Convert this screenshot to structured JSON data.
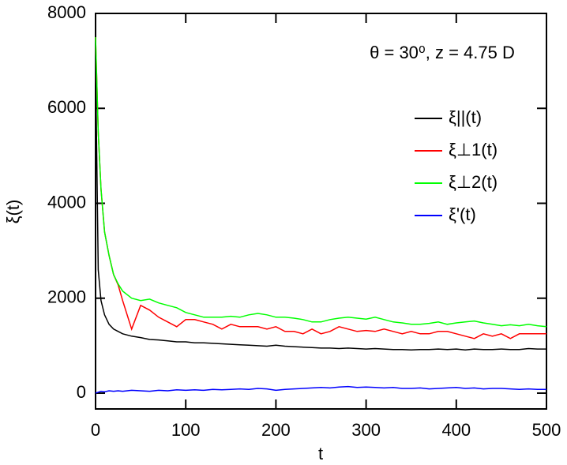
{
  "chart_data": {
    "type": "line",
    "xlabel": "t",
    "ylabel": "ξ(t)",
    "annotation": "θ = 30⁰, z = 4.75 D",
    "xlim": [
      0,
      500
    ],
    "xticks": [
      0,
      100,
      200,
      300,
      400,
      500
    ],
    "ylim": [
      -333,
      8000
    ],
    "yticks": [
      0,
      2000,
      4000,
      6000,
      8000
    ],
    "x": [
      0,
      3,
      6,
      10,
      15,
      20,
      25,
      30,
      40,
      50,
      60,
      70,
      80,
      90,
      100,
      110,
      120,
      130,
      140,
      150,
      160,
      170,
      180,
      190,
      200,
      210,
      220,
      230,
      240,
      250,
      260,
      270,
      280,
      290,
      300,
      310,
      320,
      330,
      340,
      350,
      360,
      370,
      380,
      390,
      400,
      410,
      420,
      430,
      440,
      450,
      460,
      470,
      480,
      490,
      500
    ],
    "series": [
      {
        "name": "ξ||(t)",
        "color": "#000000",
        "values": [
          7000,
          2600,
          1950,
          1650,
          1450,
          1350,
          1300,
          1250,
          1200,
          1170,
          1130,
          1120,
          1100,
          1080,
          1080,
          1060,
          1060,
          1050,
          1040,
          1030,
          1020,
          1010,
          1000,
          990,
          1010,
          990,
          980,
          970,
          960,
          950,
          950,
          940,
          950,
          940,
          930,
          940,
          930,
          920,
          920,
          910,
          920,
          920,
          930,
          920,
          930,
          910,
          930,
          920,
          920,
          930,
          920,
          920,
          940,
          930,
          930
        ]
      },
      {
        "name": "ξ⊥1(t)",
        "color": "#ff0000",
        "values": [
          7500,
          5500,
          4300,
          3400,
          2900,
          2500,
          2280,
          1950,
          1350,
          1850,
          1750,
          1600,
          1500,
          1400,
          1550,
          1550,
          1500,
          1450,
          1350,
          1450,
          1400,
          1400,
          1400,
          1350,
          1400,
          1300,
          1300,
          1250,
          1350,
          1250,
          1300,
          1400,
          1350,
          1300,
          1320,
          1300,
          1350,
          1300,
          1250,
          1300,
          1250,
          1250,
          1300,
          1300,
          1250,
          1200,
          1150,
          1250,
          1200,
          1250,
          1150,
          1250,
          1250,
          1250,
          1250
        ]
      },
      {
        "name": "ξ⊥2(t)",
        "color": "#00ff00",
        "values": [
          7500,
          5500,
          4300,
          3400,
          2900,
          2500,
          2300,
          2150,
          2000,
          1950,
          1980,
          1900,
          1850,
          1800,
          1700,
          1650,
          1600,
          1600,
          1600,
          1620,
          1600,
          1650,
          1680,
          1650,
          1600,
          1600,
          1580,
          1550,
          1500,
          1500,
          1550,
          1580,
          1600,
          1580,
          1560,
          1600,
          1550,
          1500,
          1480,
          1450,
          1450,
          1470,
          1500,
          1450,
          1480,
          1500,
          1520,
          1480,
          1450,
          1420,
          1440,
          1420,
          1450,
          1420,
          1400
        ]
      },
      {
        "name": "ξ'(t)",
        "color": "#0000ff",
        "values": [
          0,
          20,
          40,
          30,
          50,
          40,
          50,
          40,
          60,
          50,
          40,
          60,
          50,
          70,
          60,
          70,
          60,
          80,
          70,
          80,
          90,
          80,
          100,
          90,
          60,
          80,
          90,
          100,
          110,
          120,
          110,
          130,
          140,
          120,
          130,
          120,
          110,
          120,
          100,
          100,
          110,
          90,
          100,
          110,
          120,
          100,
          110,
          90,
          100,
          100,
          90,
          80,
          90,
          80,
          80
        ]
      }
    ]
  }
}
